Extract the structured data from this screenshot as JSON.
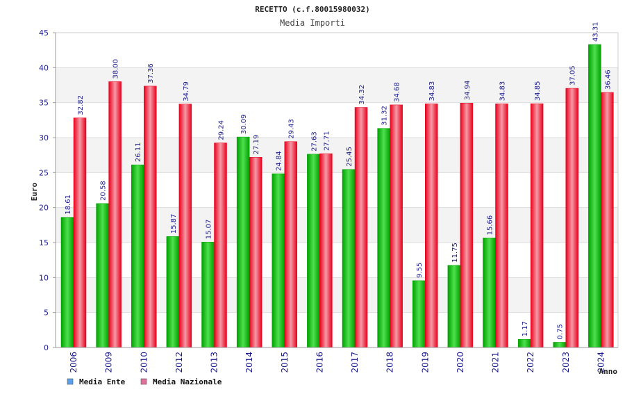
{
  "colors": {
    "ente_dark": "#00a000",
    "ente_light": "#4ee04e",
    "nazionale_dark": "#e8001c",
    "nazionale_light": "#f59aa6",
    "legend_ente": "#5aa0ee",
    "legend_nazionale": "#e06f9a",
    "band": "#f3f3f3",
    "grid": "#dddddd"
  },
  "chart_data": {
    "type": "bar",
    "title": "RECETTO (c.f.80015980032)",
    "subtitle": "Media Importi",
    "xlabel": "Anno",
    "ylabel": "Euro",
    "ylim": [
      0,
      45
    ],
    "yticks": [
      0,
      5,
      10,
      15,
      20,
      25,
      30,
      35,
      40,
      45
    ],
    "grid": true,
    "legend_position": "bottom-left",
    "categories": [
      "2006",
      "2009",
      "2010",
      "2012",
      "2013",
      "2014",
      "2015",
      "2016",
      "2017",
      "2018",
      "2019",
      "2020",
      "2021",
      "2022",
      "2023",
      "2024"
    ],
    "series": [
      {
        "name": "Media Ente",
        "values": [
          18.61,
          20.58,
          26.11,
          15.87,
          15.07,
          30.09,
          24.84,
          27.63,
          25.45,
          31.32,
          9.55,
          11.75,
          15.66,
          1.17,
          0.75,
          43.31
        ],
        "labels": [
          "18.61",
          "20.58",
          "26.11",
          "15.87",
          "15.07",
          "30.09",
          "24.84",
          "27.63",
          "25.45",
          "31.32",
          "9.55",
          "11.75",
          "15.66",
          "1.17",
          "0.75",
          "43.31"
        ]
      },
      {
        "name": "Media Nazionale",
        "values": [
          32.82,
          38.0,
          37.36,
          34.79,
          29.24,
          27.19,
          29.43,
          27.71,
          34.32,
          34.68,
          34.83,
          34.94,
          34.83,
          34.85,
          37.05,
          36.46
        ],
        "labels": [
          "32.82",
          "38.00",
          "37.36",
          "34.79",
          "29.24",
          "27.19",
          "29.43",
          "27.71",
          "34.32",
          "34.68",
          "34.83",
          "34.94",
          "34.83",
          "34.85",
          "37.05",
          "36.46"
        ]
      }
    ]
  }
}
